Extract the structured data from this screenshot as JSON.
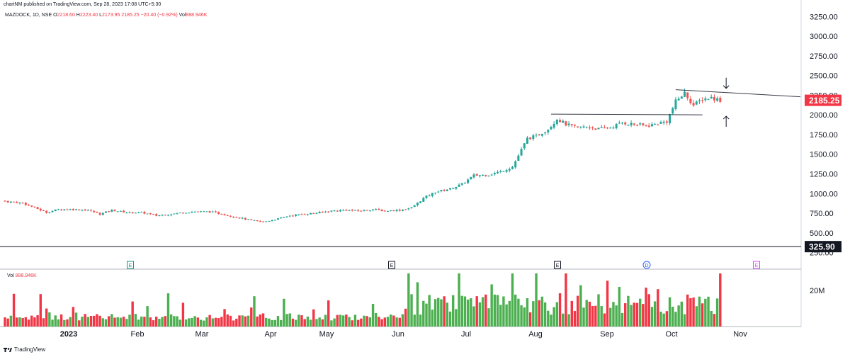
{
  "header": {
    "text": "chartNM published on TradingView.com, Sep 28, 2023 17:08 UTC+5:30"
  },
  "legend": {
    "symbol": "MAZDOCK, 1D, NSE",
    "open_label": "O",
    "open": "2218.60",
    "high_label": "H",
    "high": "2223.40",
    "low_label": "L",
    "low": "2173.95",
    "change": "2185.25 −20.40 (−0.92%)",
    "vol_label": "Vol",
    "vol": "888.946K"
  },
  "vol_legend": {
    "label": "Vol",
    "value": "888.946K"
  },
  "footer": {
    "brand": "TradingView"
  },
  "colors": {
    "up": "#26a69a",
    "down": "#ef5350",
    "vol_up": "#4caf50",
    "vol_down": "#f23645",
    "line": "#131722"
  },
  "chart_data": {
    "type": "candlestick",
    "symbol": "MAZDOCK",
    "interval": "1D",
    "exchange": "NSE",
    "y_ticks": [
      "3250.00",
      "3000.00",
      "2750.00",
      "2500.00",
      "2250.00",
      "2000.00",
      "1750.00",
      "1500.00",
      "1250.00",
      "1000.00",
      "750.00",
      "500.00",
      "250.00"
    ],
    "y_range": [
      250,
      3250
    ],
    "last_price_label": "2185.25",
    "horizontal_line_label": "325.90",
    "horizontal_line_value": 325.9,
    "volume_tick": "20M",
    "x_ticks": [
      "2023",
      "Feb",
      "Mar",
      "Apr",
      "May",
      "Jun",
      "Jul",
      "Aug",
      "Sep",
      "Oct",
      "Nov"
    ],
    "events": [
      {
        "date": "Feb",
        "label": "E",
        "color": "#089981"
      },
      {
        "date": "Jun",
        "label": "E",
        "color": "#131722"
      },
      {
        "date": "Aug",
        "label": "E",
        "color": "#131722"
      },
      {
        "date": "Sep",
        "label": "D",
        "color": "#2962ff"
      },
      {
        "date": "Oct",
        "label": "E",
        "color": "#e040fb"
      }
    ],
    "anchors": [
      [
        0,
        900
      ],
      [
        6,
        880
      ],
      [
        10,
        820
      ],
      [
        14,
        760
      ],
      [
        18,
        800
      ],
      [
        23,
        800
      ],
      [
        28,
        790
      ],
      [
        32,
        740
      ],
      [
        36,
        790
      ],
      [
        41,
        760
      ],
      [
        46,
        760
      ],
      [
        51,
        720
      ],
      [
        56,
        740
      ],
      [
        60,
        760
      ],
      [
        64,
        770
      ],
      [
        69,
        770
      ],
      [
        73,
        740
      ],
      [
        78,
        700
      ],
      [
        83,
        660
      ],
      [
        87,
        640
      ],
      [
        92,
        680
      ],
      [
        96,
        720
      ],
      [
        101,
        740
      ],
      [
        106,
        760
      ],
      [
        110,
        780
      ],
      [
        115,
        790
      ],
      [
        119,
        780
      ],
      [
        124,
        800
      ],
      [
        128,
        780
      ],
      [
        133,
        790
      ],
      [
        137,
        820
      ],
      [
        141,
        940
      ],
      [
        145,
        1020
      ],
      [
        150,
        1060
      ],
      [
        154,
        1120
      ],
      [
        158,
        1230
      ],
      [
        163,
        1240
      ],
      [
        167,
        1280
      ],
      [
        171,
        1340
      ],
      [
        176,
        1700
      ],
      [
        179,
        1730
      ],
      [
        183,
        1820
      ],
      [
        186,
        1950
      ],
      [
        189,
        1880
      ],
      [
        193,
        1830
      ],
      [
        196,
        1850
      ],
      [
        200,
        1820
      ],
      [
        204,
        1840
      ],
      [
        208,
        1900
      ],
      [
        212,
        1880
      ],
      [
        216,
        1860
      ],
      [
        219,
        1880
      ],
      [
        223,
        1920
      ],
      [
        226,
        2170
      ],
      [
        229,
        2280
      ],
      [
        232,
        2120
      ],
      [
        235,
        2200
      ],
      [
        238,
        2220
      ],
      [
        241,
        2185
      ]
    ],
    "trendlines": [
      {
        "from": [
          184,
          2010
        ],
        "to": [
          235,
          2000
        ]
      },
      {
        "from": [
          226,
          2320
        ],
        "to": [
          268,
          2230
        ]
      }
    ],
    "arrows": [
      {
        "at": [
          243,
          2400
        ],
        "direction": "down"
      },
      {
        "at": [
          243,
          1920
        ],
        "direction": "up"
      }
    ]
  }
}
